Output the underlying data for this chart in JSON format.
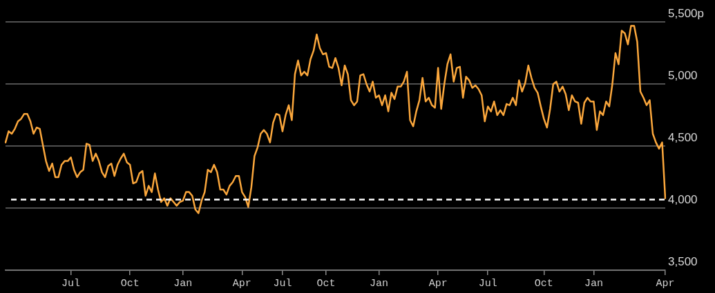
{
  "chart_data": {
    "type": "line",
    "categories": [
      null,
      null,
      null,
      null,
      null,
      null,
      null,
      null,
      null,
      null,
      null,
      null,
      null,
      null,
      null,
      null,
      null,
      null,
      null,
      null,
      null,
      "Jul",
      null,
      null,
      null,
      null,
      null,
      null,
      null,
      null,
      null,
      null,
      null,
      null,
      null,
      null,
      null,
      null,
      null,
      null,
      "Oct",
      null,
      null,
      null,
      null,
      null,
      null,
      null,
      null,
      null,
      null,
      null,
      null,
      null,
      null,
      null,
      null,
      "Jan",
      null,
      null,
      null,
      null,
      null,
      null,
      null,
      null,
      null,
      null,
      null,
      null,
      null,
      null,
      null,
      null,
      null,
      null,
      "Apr",
      null,
      null,
      null,
      null,
      null,
      null,
      null,
      null,
      null,
      null,
      null,
      null,
      "Jul",
      null,
      null,
      null,
      null,
      null,
      null,
      null,
      null,
      null,
      null,
      null,
      null,
      null,
      "Oct",
      null,
      null,
      null,
      null,
      null,
      null,
      null,
      null,
      null,
      null,
      null,
      null,
      null,
      null,
      null,
      null,
      "Jan",
      null,
      null,
      null,
      null,
      null,
      null,
      null,
      null,
      null,
      null,
      null,
      null,
      null,
      null,
      null,
      null,
      null,
      null,
      "Apr",
      null,
      null,
      null,
      null,
      null,
      null,
      null,
      null,
      null,
      null,
      null,
      null,
      null,
      null,
      null,
      "Jul",
      null,
      null,
      null,
      null,
      null,
      null,
      null,
      null,
      null,
      null,
      null,
      null,
      null,
      null,
      null,
      null,
      null,
      "Oct",
      null,
      null,
      null,
      null,
      null,
      null,
      null,
      null,
      null,
      null,
      null,
      null,
      null,
      null,
      null,
      "Jan",
      null,
      null,
      null,
      null,
      null,
      null,
      null,
      null,
      null,
      null,
      null,
      null,
      null,
      null,
      null,
      null,
      null,
      null,
      null,
      null,
      null,
      null,
      "Apr"
    ],
    "series": [
      {
        "color": "#fba73c",
        "values": [
          4530,
          4620,
          4600,
          4640,
          4700,
          4720,
          4760,
          4760,
          4700,
          4600,
          4650,
          4640,
          4510,
          4380,
          4300,
          4360,
          4250,
          4250,
          4350,
          4380,
          4380,
          4410,
          4310,
          4250,
          4290,
          4310,
          4520,
          4510,
          4380,
          4440,
          4380,
          4290,
          4250,
          4340,
          4360,
          4260,
          4350,
          4400,
          4440,
          4370,
          4350,
          4200,
          4210,
          4280,
          4300,
          4100,
          4180,
          4130,
          4280,
          4150,
          4050,
          4080,
          4020,
          4080,
          4050,
          4020,
          4050,
          4060,
          4130,
          4130,
          4100,
          3990,
          3960,
          4060,
          4130,
          4310,
          4290,
          4350,
          4290,
          4150,
          4150,
          4110,
          4180,
          4210,
          4260,
          4260,
          4130,
          4090,
          4010,
          4170,
          4420,
          4490,
          4600,
          4630,
          4600,
          4530,
          4690,
          4760,
          4750,
          4620,
          4750,
          4830,
          4710,
          5080,
          5190,
          5070,
          5100,
          5070,
          5200,
          5270,
          5400,
          5290,
          5240,
          5250,
          5140,
          5130,
          5210,
          5130,
          4990,
          5150,
          5080,
          4870,
          4830,
          4860,
          5070,
          5080,
          5000,
          4940,
          5020,
          4890,
          4910,
          4830,
          4910,
          4780,
          4930,
          4880,
          4980,
          4980,
          5020,
          5100,
          4710,
          4660,
          4780,
          4870,
          5050,
          4860,
          4890,
          4830,
          4810,
          5130,
          4800,
          5000,
          5160,
          5240,
          5020,
          5130,
          5140,
          4890,
          5060,
          5030,
          4970,
          4990,
          4960,
          4910,
          4700,
          4820,
          4780,
          4860,
          4750,
          4790,
          4750,
          4840,
          4830,
          4890,
          4830,
          5030,
          4940,
          5010,
          5150,
          5050,
          4970,
          4930,
          4820,
          4720,
          4650,
          4800,
          5000,
          5020,
          4940,
          4980,
          4920,
          4790,
          4910,
          4860,
          4850,
          4680,
          4850,
          4890,
          4860,
          4860,
          4630,
          4780,
          4750,
          4860,
          4820,
          5000,
          5250,
          5160,
          5430,
          5410,
          5320,
          5470,
          5470,
          5340,
          4940,
          4890,
          4830,
          4870,
          4600,
          4530,
          4480,
          4530,
          4080
        ]
      }
    ],
    "ylim": [
      3500,
      5500
    ],
    "yticks": [
      {
        "value": 3500,
        "label": "3,500"
      },
      {
        "value": 4000,
        "label": "4,000"
      },
      {
        "value": 4500,
        "label": "4,500"
      },
      {
        "value": 5000,
        "label": "5,000"
      },
      {
        "value": 5500,
        "label": "5,500p"
      }
    ],
    "ref_lines": [
      {
        "axis": "y",
        "value": 4070,
        "color": "#ffffff",
        "line_style": "dashed"
      }
    ],
    "grid": "y",
    "legend": false,
    "marker": "none",
    "line_style": "solid"
  }
}
